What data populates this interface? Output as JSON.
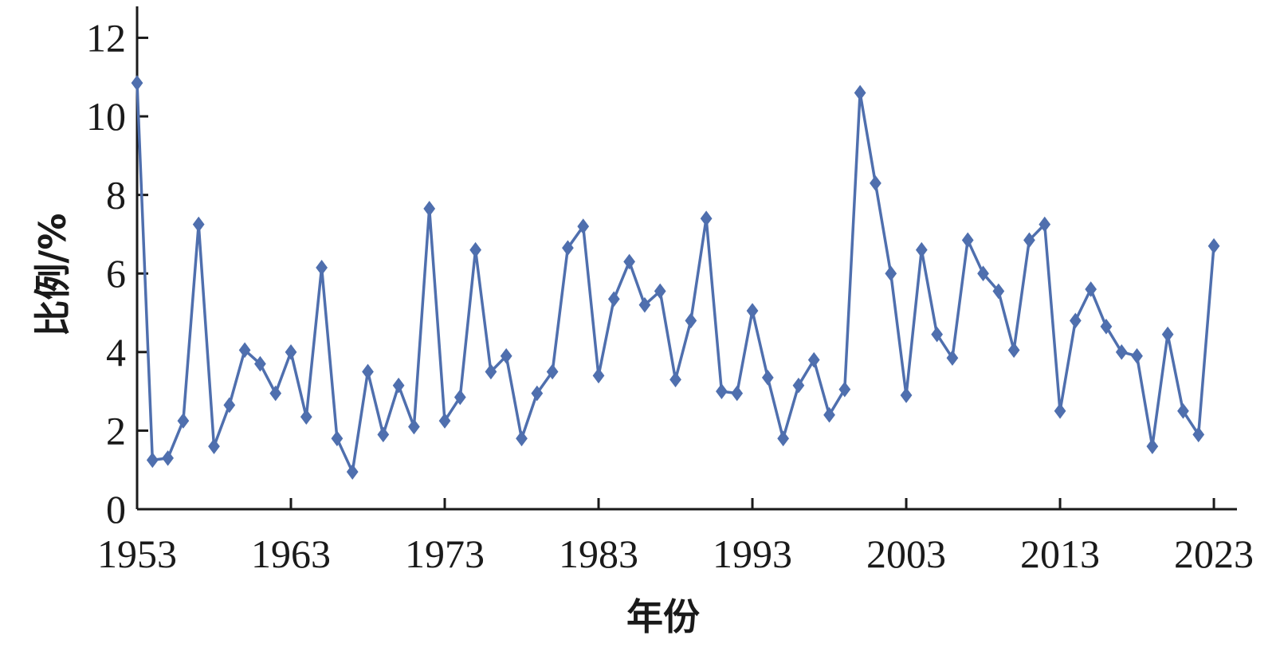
{
  "chart_data": {
    "type": "line",
    "xlabel": "年份",
    "ylabel": "比例/%",
    "xlim": [
      1953,
      2024.5
    ],
    "ylim": [
      0,
      12.8
    ],
    "x_ticks": [
      1953,
      1963,
      1973,
      1983,
      1993,
      2003,
      2013,
      2023
    ],
    "y_ticks": [
      0,
      2,
      4,
      6,
      8,
      10,
      12
    ],
    "x_tick_labels": [
      "1953",
      "1963",
      "1973",
      "1983",
      "1993",
      "2003",
      "2013",
      "2023"
    ],
    "y_tick_labels": [
      "0",
      "2",
      "4",
      "6",
      "8",
      "10",
      "12"
    ],
    "grid": false,
    "marker": "diamond",
    "series": [
      {
        "color": "#4f6fae",
        "x": [
          1953,
          1954,
          1955,
          1956,
          1957,
          1958,
          1959,
          1960,
          1961,
          1962,
          1963,
          1964,
          1965,
          1966,
          1967,
          1968,
          1969,
          1970,
          1971,
          1972,
          1973,
          1974,
          1975,
          1976,
          1977,
          1978,
          1979,
          1980,
          1981,
          1982,
          1983,
          1984,
          1985,
          1986,
          1987,
          1988,
          1989,
          1990,
          1991,
          1992,
          1993,
          1994,
          1995,
          1996,
          1997,
          1998,
          1999,
          2000,
          2001,
          2002,
          2003,
          2004,
          2005,
          2006,
          2007,
          2008,
          2009,
          2010,
          2011,
          2012,
          2013,
          2014,
          2015,
          2016,
          2017,
          2018,
          2019,
          2020,
          2021,
          2022,
          2023
        ],
        "values": [
          10.85,
          1.25,
          1.3,
          2.25,
          7.25,
          1.6,
          2.65,
          4.05,
          3.7,
          2.95,
          4.0,
          2.35,
          6.15,
          1.8,
          0.95,
          3.5,
          1.9,
          3.15,
          2.1,
          7.65,
          2.25,
          2.85,
          6.6,
          3.5,
          3.9,
          1.8,
          2.95,
          3.5,
          6.65,
          7.2,
          3.4,
          5.35,
          6.3,
          5.2,
          5.55,
          3.3,
          4.8,
          7.4,
          3.0,
          2.95,
          5.05,
          3.35,
          1.8,
          3.15,
          3.8,
          2.4,
          3.05,
          10.6,
          8.3,
          6.0,
          2.9,
          6.6,
          4.45,
          3.85,
          6.85,
          6.0,
          5.55,
          4.05,
          6.85,
          7.25,
          2.5,
          4.8,
          5.6,
          4.65,
          4.0,
          3.9,
          1.6,
          4.45,
          2.5,
          1.9,
          6.7
        ]
      }
    ]
  }
}
